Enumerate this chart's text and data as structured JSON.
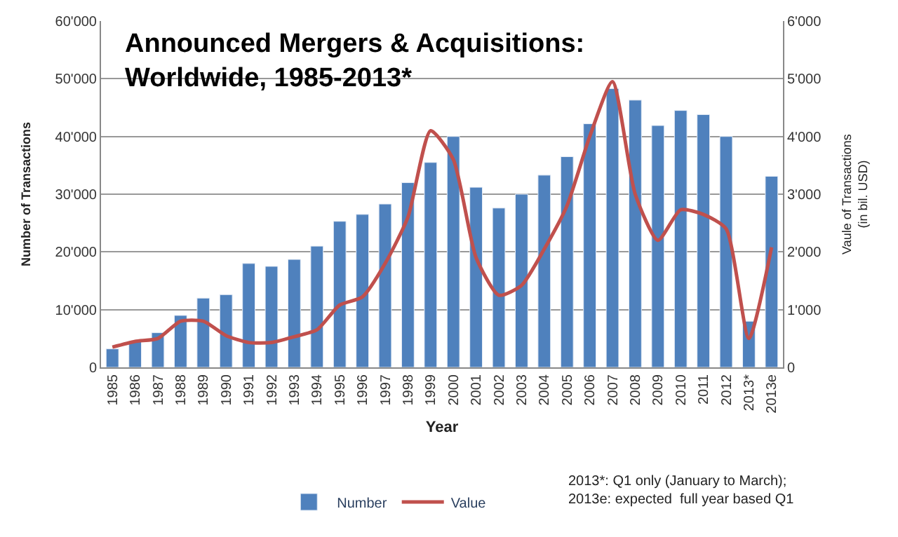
{
  "chart_data": {
    "type": "bar",
    "title": "Announced Mergers & Acquisitions:\nWorldwide, 1985-2013*",
    "xlabel": "Year",
    "ylabel": "Number of Transactions",
    "y2label": "Vaule of Transactions\n(in bil. USD)",
    "categories": [
      "1985",
      "1986",
      "1987",
      "1988",
      "1989",
      "1990",
      "1991",
      "1992",
      "1993",
      "1994",
      "1995",
      "1996",
      "1997",
      "1998",
      "1999",
      "2000",
      "2001",
      "2002",
      "2003",
      "2004",
      "2005",
      "2006",
      "2007",
      "2008",
      "2009",
      "2010",
      "2011",
      "2012",
      "2013*",
      "2013e"
    ],
    "series": [
      {
        "name": "Number",
        "color": "#4f81bd",
        "values": [
          3200,
          4500,
          6000,
          9000,
          12000,
          12600,
          18000,
          17500,
          18700,
          21000,
          25300,
          26500,
          28300,
          32000,
          35500,
          40000,
          31200,
          27600,
          30000,
          33300,
          36500,
          42200,
          48300,
          46300,
          41900,
          44500,
          43800,
          40000,
          8000,
          33100
        ]
      },
      {
        "name": "Value",
        "type": "line",
        "axis": "y2",
        "color": "#c0504d",
        "values": [
          350,
          450,
          500,
          800,
          800,
          550,
          430,
          430,
          530,
          650,
          1080,
          1220,
          1800,
          2600,
          4100,
          3600,
          1900,
          1250,
          1420,
          2050,
          2800,
          4000,
          4950,
          3000,
          2200,
          2730,
          2650,
          2400,
          500,
          2080
        ]
      }
    ],
    "ylim": [
      0,
      60000
    ],
    "yticks": [
      {
        "value": 0,
        "label": "0"
      },
      {
        "value": 10000,
        "label": "10'000"
      },
      {
        "value": 20000,
        "label": "20'000"
      },
      {
        "value": 30000,
        "label": "30'000"
      },
      {
        "value": 40000,
        "label": "40'000"
      },
      {
        "value": 50000,
        "label": "50'000"
      },
      {
        "value": 60000,
        "label": "60'000"
      }
    ],
    "y2lim": [
      0,
      6000
    ],
    "y2ticks": [
      {
        "value": 0,
        "label": "0"
      },
      {
        "value": 1000,
        "label": "1'000"
      },
      {
        "value": 2000,
        "label": "2'000"
      },
      {
        "value": 3000,
        "label": "3'000"
      },
      {
        "value": 4000,
        "label": "4'000"
      },
      {
        "value": 5000,
        "label": "5'000"
      },
      {
        "value": 6000,
        "label": "6'000"
      }
    ],
    "grid": "y",
    "legend": "bottom",
    "marker": "none",
    "line_style": "solid",
    "annotations": [
      "2013*: Q1 only (January to March);\n2013e: expected  full year based Q1"
    ]
  }
}
